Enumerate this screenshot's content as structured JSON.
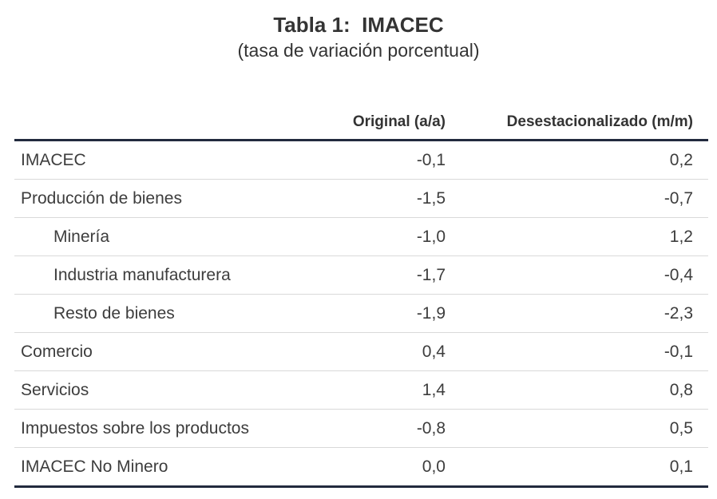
{
  "title": "Tabla 1:  IMACEC",
  "subtitle": "(tasa de variación porcentual)",
  "table": {
    "column_headers": {
      "label": "",
      "original": "Original (a/a)",
      "desestacionalizado": "Desestacionalizado (m/m)"
    },
    "rows": [
      {
        "label": "IMACEC",
        "indent": false,
        "original": "-0,1",
        "desestacionalizado": "0,2"
      },
      {
        "label": "Producción de bienes",
        "indent": false,
        "original": "-1,5",
        "desestacionalizado": "-0,7"
      },
      {
        "label": "Minería",
        "indent": true,
        "original": "-1,0",
        "desestacionalizado": "1,2"
      },
      {
        "label": "Industria manufacturera",
        "indent": true,
        "original": "-1,7",
        "desestacionalizado": "-0,4"
      },
      {
        "label": "Resto de bienes",
        "indent": true,
        "original": "-1,9",
        "desestacionalizado": "-2,3"
      },
      {
        "label": "Comercio",
        "indent": false,
        "original": "0,4",
        "desestacionalizado": "-0,1"
      },
      {
        "label": "Servicios",
        "indent": false,
        "original": "1,4",
        "desestacionalizado": "0,8"
      },
      {
        "label": "Impuestos sobre los productos",
        "indent": false,
        "original": "-0,8",
        "desestacionalizado": "0,5"
      },
      {
        "label": "IMACEC No Minero",
        "indent": false,
        "original": "0,0",
        "desestacionalizado": "0,1"
      }
    ]
  },
  "colors": {
    "thick_rule": "#222a3e",
    "thin_rule": "#d9d9d9",
    "text": "#3d3d3d",
    "background": "#ffffff"
  },
  "chart_data": {
    "type": "table",
    "title": "Tabla 1:  IMACEC",
    "subtitle": "(tasa de variación porcentual)",
    "columns": [
      "",
      "Original (a/a)",
      "Desestacionalizado (m/m)"
    ],
    "rows": [
      [
        "IMACEC",
        -0.1,
        0.2
      ],
      [
        "Producción de bienes",
        -1.5,
        -0.7
      ],
      [
        "Minería",
        -1.0,
        1.2
      ],
      [
        "Industria manufacturera",
        -1.7,
        -0.4
      ],
      [
        "Resto de bienes",
        -1.9,
        -2.3
      ],
      [
        "Comercio",
        0.4,
        -0.1
      ],
      [
        "Servicios",
        1.4,
        0.8
      ],
      [
        "Impuestos sobre los productos",
        -0.8,
        0.5
      ],
      [
        "IMACEC No Minero",
        0.0,
        0.1
      ]
    ]
  }
}
